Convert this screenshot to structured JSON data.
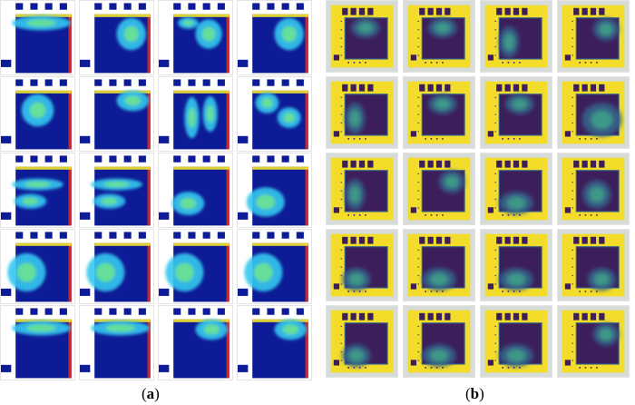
{
  "captions": {
    "a": {
      "open": "(",
      "letter": "a",
      "close": ")"
    },
    "b": {
      "open": "(",
      "letter": "b",
      "close": ")"
    }
  },
  "panel_a": {
    "colormap": "jet",
    "colors": {
      "deep": "#0d1b96",
      "blue": "#1f4fd8",
      "cyan": "#33c8f0",
      "green": "#7ef07a",
      "yellow": "#f5e62b",
      "red": "#e62a1a"
    },
    "rows": 5,
    "cols": 4,
    "hotspot_pattern": [
      [
        "top-band",
        "center-right",
        "right-block",
        "center-right"
      ],
      [
        "center",
        "top-right",
        "pillar",
        "split"
      ],
      [
        "horizontal-band",
        "horizontal-band",
        "lower-left",
        "lower-left-large"
      ],
      [
        "left-lobe",
        "left-lobe",
        "left-lobe",
        "left-lobe"
      ],
      [
        "top-band",
        "top-band",
        "top-right",
        "top-right"
      ]
    ]
  },
  "panel_b": {
    "colormap": "viridis",
    "colors": {
      "background": "#f3dc2a",
      "deep": "#3c1e5a",
      "mid": "#35638a",
      "teal": "#3fa38a",
      "light": "#7fd36a",
      "frame": "#d8dcd9"
    },
    "rows": 5,
    "cols": 4,
    "hotspot_pattern": [
      [
        "top-center",
        "top-center",
        "left",
        "top-right"
      ],
      [
        "left",
        "top-center",
        "top-center",
        "right-block"
      ],
      [
        "left",
        "top-right",
        "lower",
        "center"
      ],
      [
        "lower-left",
        "lower",
        "lower",
        "lower-right"
      ],
      [
        "lower-left",
        "lower",
        "lower",
        "top-right"
      ]
    ]
  }
}
